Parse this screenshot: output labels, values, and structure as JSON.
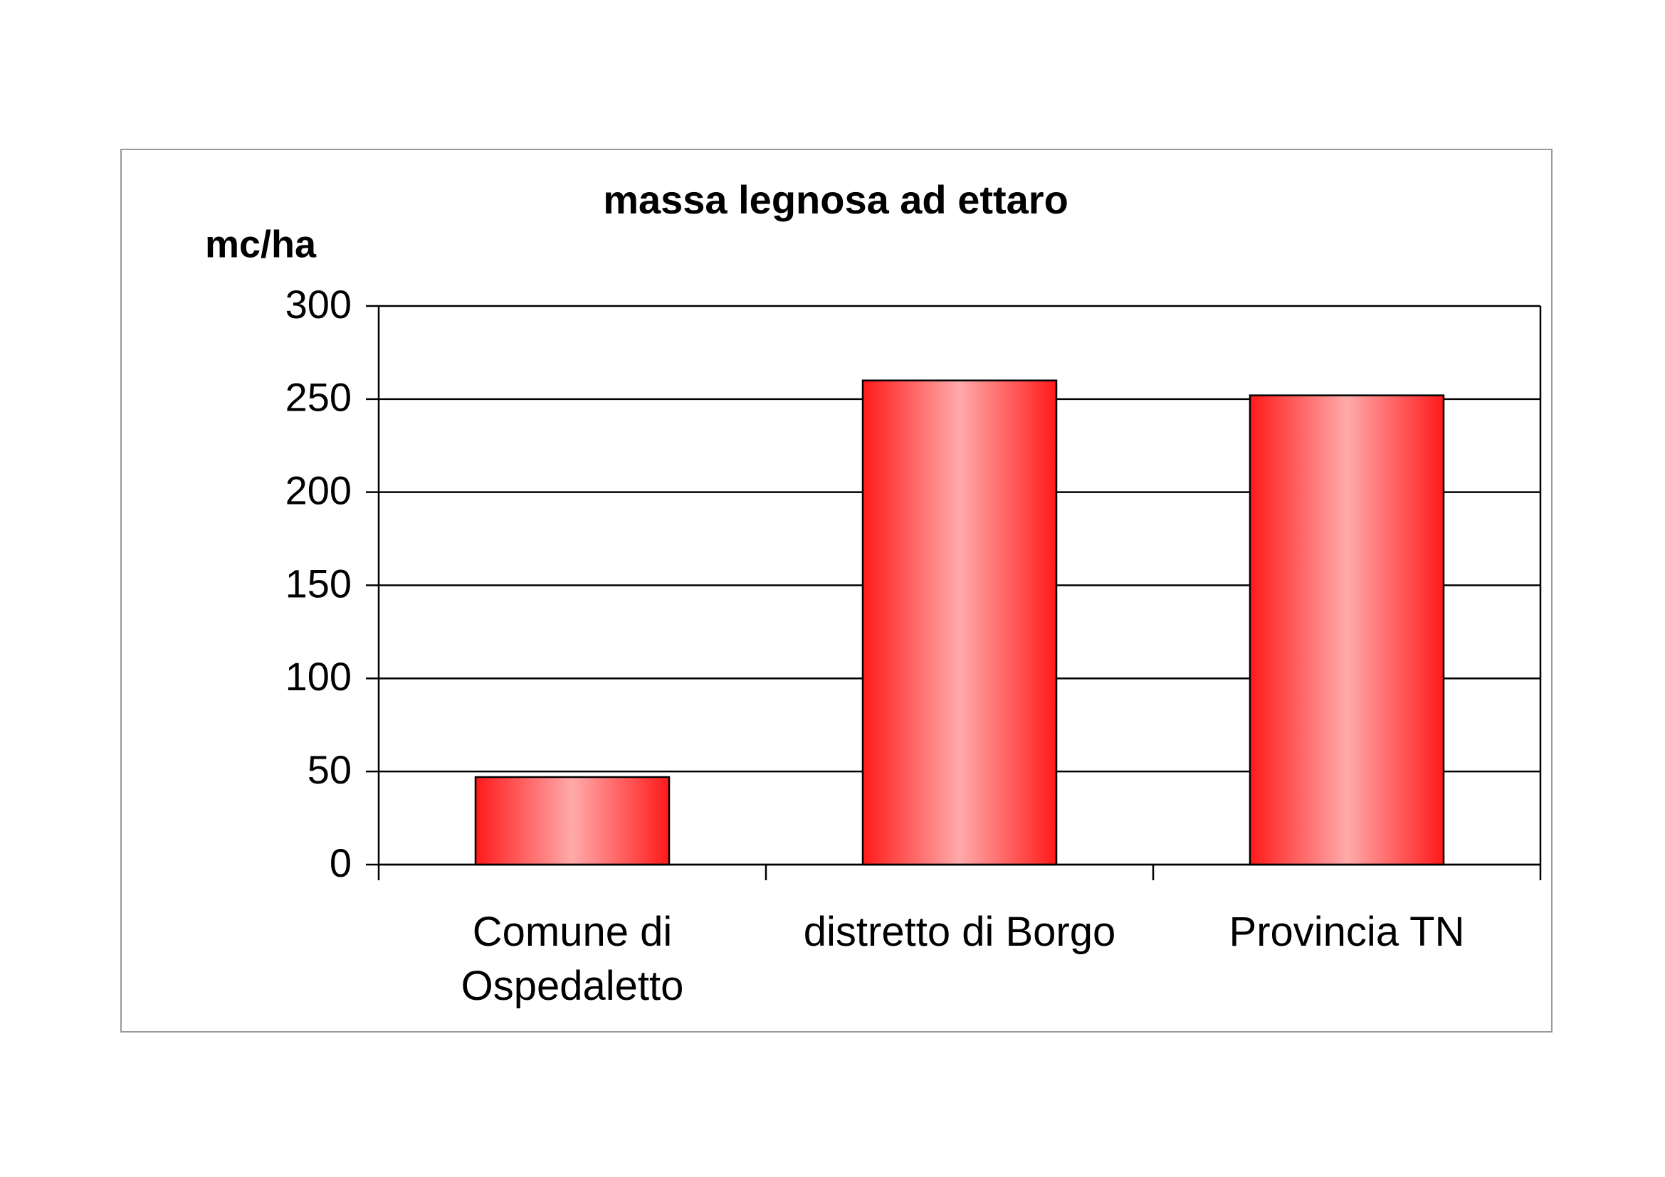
{
  "chart_data": {
    "type": "bar",
    "title": "massa legnosa ad ettaro",
    "y_label": "mc/ha",
    "categories": [
      "Comune di Ospedaletto",
      "distretto di Borgo",
      "Provincia TN"
    ],
    "values": [
      47,
      260,
      252
    ],
    "color": "#ff1a1a",
    "ylim": [
      0,
      300
    ],
    "yticks": [
      0,
      50,
      100,
      150,
      200,
      250,
      300
    ],
    "grid": true
  }
}
